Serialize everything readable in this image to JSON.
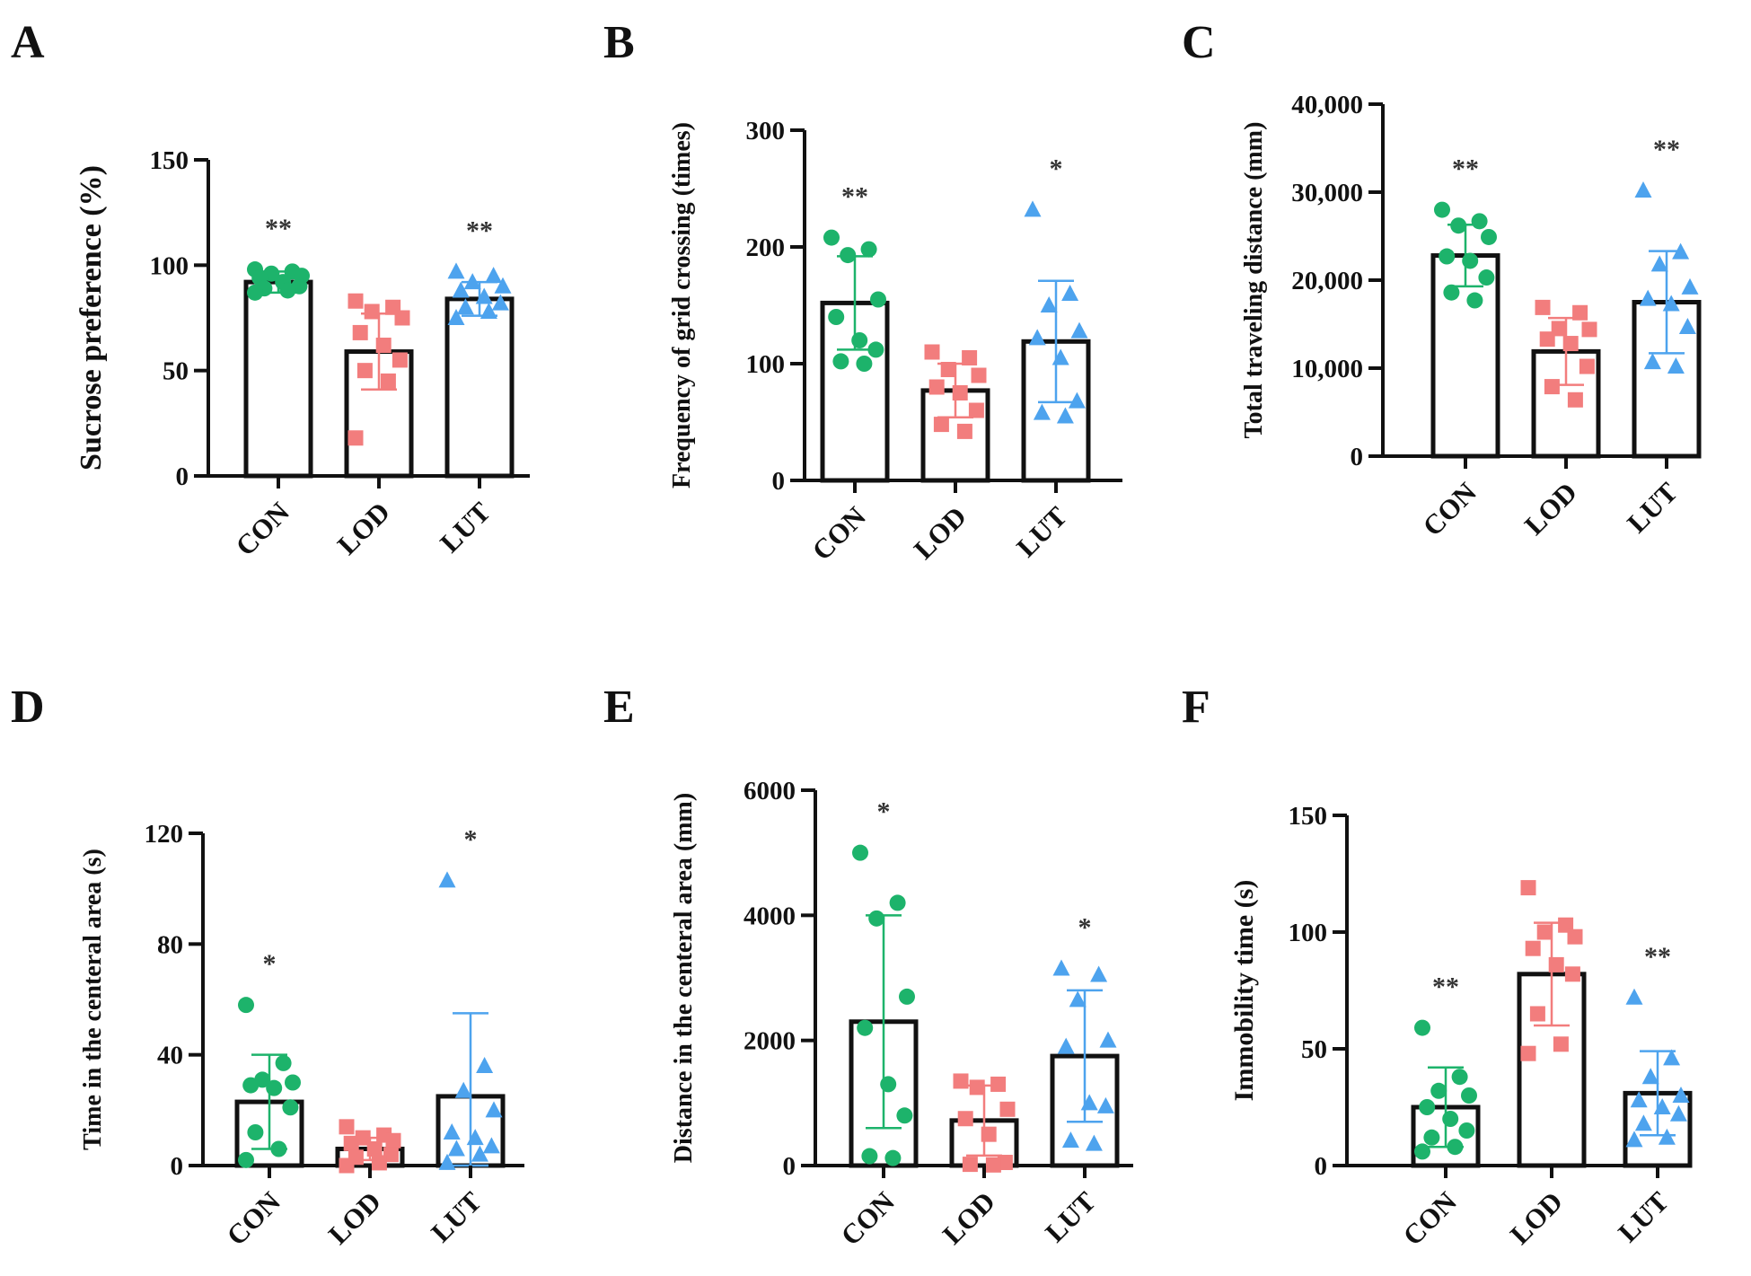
{
  "colors": {
    "CON": "#1db36b",
    "LOD": "#f27d7d",
    "LUT": "#4da3ee",
    "axis": "#111111"
  },
  "chart_data": [
    {
      "letter": "A",
      "type": "bar",
      "ylabel": "Sucrose preference (%)",
      "ylim": [
        0,
        150
      ],
      "ticks": [
        0,
        50,
        100,
        150
      ],
      "tick_labels": [
        "0",
        "50",
        "100",
        "150"
      ],
      "categories": [
        "CON",
        "LOD",
        "LUT"
      ],
      "means": [
        92,
        59,
        84
      ],
      "sd": [
        5,
        18,
        8
      ],
      "significance": [
        "**",
        "",
        "**"
      ],
      "points": [
        [
          98,
          97,
          96,
          95,
          94,
          92,
          90,
          89,
          88,
          87
        ],
        [
          83,
          80,
          78,
          75,
          68,
          62,
          55,
          50,
          45,
          18
        ],
        [
          97,
          95,
          92,
          90,
          88,
          85,
          82,
          80,
          78,
          75
        ]
      ]
    },
    {
      "letter": "B",
      "type": "bar",
      "ylabel": "Frequency of grid crossing (times)",
      "ylim": [
        0,
        300
      ],
      "ticks": [
        0,
        100,
        200,
        300
      ],
      "tick_labels": [
        "0",
        "100",
        "200",
        "300"
      ],
      "categories": [
        "CON",
        "LOD",
        "LUT"
      ],
      "means": [
        152,
        77,
        119
      ],
      "sd": [
        40,
        23,
        52
      ],
      "significance": [
        "**",
        "",
        "*"
      ],
      "points": [
        [
          208,
          198,
          193,
          155,
          140,
          120,
          112,
          102,
          100
        ],
        [
          110,
          105,
          95,
          90,
          80,
          75,
          60,
          48,
          42
        ],
        [
          232,
          160,
          150,
          128,
          122,
          105,
          68,
          58,
          55
        ]
      ]
    },
    {
      "letter": "C",
      "type": "bar",
      "ylabel": "Total traveling distance (mm)",
      "ylim": [
        0,
        40000
      ],
      "ticks": [
        0,
        10000,
        20000,
        30000,
        40000
      ],
      "tick_labels": [
        "0",
        "10,000",
        "20,000",
        "30,000",
        "40,000"
      ],
      "categories": [
        "CON",
        "LOD",
        "LUT"
      ],
      "means": [
        22800,
        11900,
        17500
      ],
      "sd": [
        3500,
        3800,
        5800
      ],
      "significance": [
        "**",
        "",
        "**"
      ],
      "points": [
        [
          28000,
          26700,
          26200,
          24900,
          22700,
          22200,
          20300,
          18600,
          17700
        ],
        [
          16900,
          16300,
          14500,
          14400,
          13300,
          12800,
          10200,
          7900,
          6400
        ],
        [
          30200,
          23200,
          21800,
          19200,
          17900,
          17300,
          14700,
          10700,
          10200
        ]
      ]
    },
    {
      "letter": "D",
      "type": "bar",
      "ylabel": "Time in the centeral area (s)",
      "ylim": [
        0,
        120
      ],
      "ticks": [
        0,
        40,
        80,
        120
      ],
      "tick_labels": [
        "0",
        "40",
        "80",
        "120"
      ],
      "categories": [
        "CON",
        "LOD",
        "LUT"
      ],
      "means": [
        23,
        6,
        25
      ],
      "sd": [
        17,
        4,
        30
      ],
      "significance": [
        "*",
        "",
        "*"
      ],
      "points": [
        [
          58,
          37,
          31,
          30,
          29,
          28,
          21,
          12,
          6,
          2
        ],
        [
          14,
          11,
          10,
          9,
          8,
          6,
          4,
          3,
          1,
          0
        ],
        [
          103,
          36,
          27,
          20,
          12,
          10,
          7,
          6,
          4,
          1
        ]
      ]
    },
    {
      "letter": "E",
      "type": "bar",
      "ylabel": "Distance in the centeral area (mm)",
      "ylim": [
        0,
        6000
      ],
      "ticks": [
        0,
        2000,
        4000,
        6000
      ],
      "tick_labels": [
        "0",
        "2000",
        "4000",
        "6000"
      ],
      "categories": [
        "CON",
        "LOD",
        "LUT"
      ],
      "means": [
        2300,
        720,
        1750
      ],
      "sd": [
        1700,
        560,
        1050
      ],
      "significance": [
        "*",
        "",
        "*"
      ],
      "points": [
        [
          5000,
          4200,
          3950,
          2700,
          2200,
          1300,
          800,
          150,
          120
        ],
        [
          1350,
          1300,
          1250,
          900,
          750,
          500,
          50,
          20,
          10
        ],
        [
          3150,
          3050,
          2650,
          2000,
          1900,
          1000,
          950,
          400,
          350
        ]
      ]
    },
    {
      "letter": "F",
      "type": "bar",
      "ylabel": "Immobility time (s)",
      "ylim": [
        0,
        150
      ],
      "ticks": [
        0,
        50,
        100,
        150
      ],
      "tick_labels": [
        "0",
        "50",
        "100",
        "150"
      ],
      "categories": [
        "CON",
        "LOD",
        "LUT"
      ],
      "means": [
        25,
        82,
        31
      ],
      "sd": [
        17,
        22,
        18
      ],
      "significance": [
        "**",
        "",
        "**"
      ],
      "points": [
        [
          59,
          38,
          32,
          30,
          25,
          20,
          15,
          12,
          8,
          6
        ],
        [
          119,
          103,
          100,
          98,
          93,
          86,
          82,
          65,
          52,
          48
        ],
        [
          72,
          46,
          38,
          30,
          28,
          25,
          22,
          18,
          12,
          11
        ]
      ]
    }
  ]
}
